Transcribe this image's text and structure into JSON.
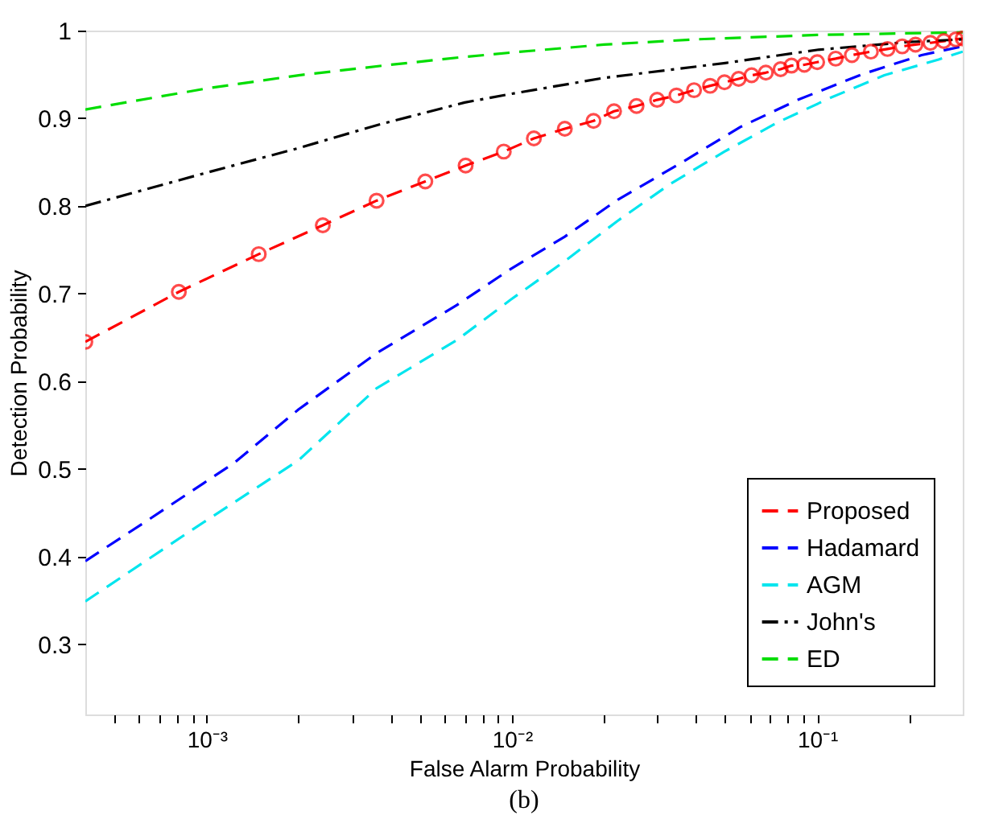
{
  "chart_data": {
    "type": "line",
    "xlabel": "False Alarm Probability",
    "ylabel": "Detection Probability",
    "annotations": [
      "(b)"
    ],
    "log": "x",
    "xlim": [
      0.0004,
      0.3
    ],
    "ylim": [
      0.22,
      1
    ],
    "xticks": [
      {
        "value": 0.0005,
        "label": null
      },
      {
        "value": 0.0006,
        "label": null
      },
      {
        "value": 0.0007,
        "label": null
      },
      {
        "value": 0.0008,
        "label": null
      },
      {
        "value": 0.0009,
        "label": null
      },
      {
        "value": 0.001,
        "label": "10⁻³"
      },
      {
        "value": 0.002,
        "label": null
      },
      {
        "value": 0.003,
        "label": null
      },
      {
        "value": 0.004,
        "label": null
      },
      {
        "value": 0.005,
        "label": null
      },
      {
        "value": 0.006,
        "label": null
      },
      {
        "value": 0.007,
        "label": null
      },
      {
        "value": 0.008,
        "label": null
      },
      {
        "value": 0.009,
        "label": null
      },
      {
        "value": 0.01,
        "label": "10⁻²"
      },
      {
        "value": 0.02,
        "label": null
      },
      {
        "value": 0.03,
        "label": null
      },
      {
        "value": 0.04,
        "label": null
      },
      {
        "value": 0.05,
        "label": null
      },
      {
        "value": 0.06,
        "label": null
      },
      {
        "value": 0.07,
        "label": null
      },
      {
        "value": 0.08,
        "label": null
      },
      {
        "value": 0.09,
        "label": null
      },
      {
        "value": 0.1,
        "label": "10⁻¹"
      },
      {
        "value": 0.2,
        "label": null
      }
    ],
    "yticks": [
      0.3,
      0.4,
      0.5,
      0.6,
      0.7,
      0.8,
      0.9,
      1
    ],
    "grid": false,
    "legend": "bottom right",
    "series": [
      {
        "name": "Proposed",
        "color": "#ff0000",
        "marker": "circle",
        "line_style": "dashed",
        "x": [
          0.0004,
          0.00081,
          0.00148,
          0.0024,
          0.0036,
          0.0052,
          0.00705,
          0.0094,
          0.0118,
          0.0149,
          0.0185,
          0.0216,
          0.0256,
          0.0299,
          0.0346,
          0.0395,
          0.0446,
          0.0497,
          0.0553,
          0.061,
          0.0679,
          0.0759,
          0.0824,
          0.0908,
          0.1,
          0.115,
          0.13,
          0.15,
          0.17,
          0.19,
          0.21,
          0.235,
          0.26,
          0.285,
          0.3
        ],
        "values": [
          0.645,
          0.702,
          0.745,
          0.778,
          0.806,
          0.828,
          0.846,
          0.862,
          0.877,
          0.888,
          0.897,
          0.908,
          0.914,
          0.921,
          0.926,
          0.932,
          0.937,
          0.941,
          0.945,
          0.949,
          0.952,
          0.956,
          0.96,
          0.961,
          0.964,
          0.968,
          0.972,
          0.976,
          0.979,
          0.982,
          0.984,
          0.986,
          0.988,
          0.99,
          0.991
        ]
      },
      {
        "name": "Hadamard",
        "color": "#0000ff",
        "line_style": "dashed",
        "x": [
          0.0004,
          0.00065,
          0.00123,
          0.002,
          0.0036,
          0.0066,
          0.0099,
          0.0149,
          0.0222,
          0.0358,
          0.056,
          0.0865,
          0.14,
          0.22,
          0.3
        ],
        "values": [
          0.395,
          0.443,
          0.507,
          0.568,
          0.632,
          0.687,
          0.728,
          0.765,
          0.807,
          0.849,
          0.89,
          0.921,
          0.95,
          0.972,
          0.982
        ]
      },
      {
        "name": "AGM",
        "color": "#00e5ee",
        "line_style": "dashed",
        "x": [
          0.0004,
          0.00089,
          0.002,
          0.0036,
          0.0066,
          0.0099,
          0.0149,
          0.0222,
          0.033,
          0.0497,
          0.074,
          0.11,
          0.166,
          0.25,
          0.3
        ],
        "values": [
          0.349,
          0.43,
          0.51,
          0.592,
          0.647,
          0.693,
          0.737,
          0.783,
          0.825,
          0.862,
          0.895,
          0.923,
          0.949,
          0.967,
          0.976
        ]
      },
      {
        "name": "John's",
        "color": "#000000",
        "line_style": "dashdot",
        "x": [
          0.0004,
          0.001,
          0.002,
          0.0036,
          0.007,
          0.01,
          0.02,
          0.05,
          0.1,
          0.2,
          0.3
        ],
        "values": [
          0.8,
          0.838,
          0.866,
          0.892,
          0.918,
          0.928,
          0.946,
          0.963,
          0.978,
          0.987,
          0.99
        ]
      },
      {
        "name": "ED",
        "color": "#00dd00",
        "line_style": "dashed",
        "x": [
          0.0004,
          0.001,
          0.002,
          0.004,
          0.007,
          0.01,
          0.02,
          0.04,
          0.1,
          0.3
        ],
        "values": [
          0.91,
          0.934,
          0.949,
          0.961,
          0.97,
          0.975,
          0.984,
          0.99,
          0.995,
          0.998
        ]
      }
    ]
  }
}
